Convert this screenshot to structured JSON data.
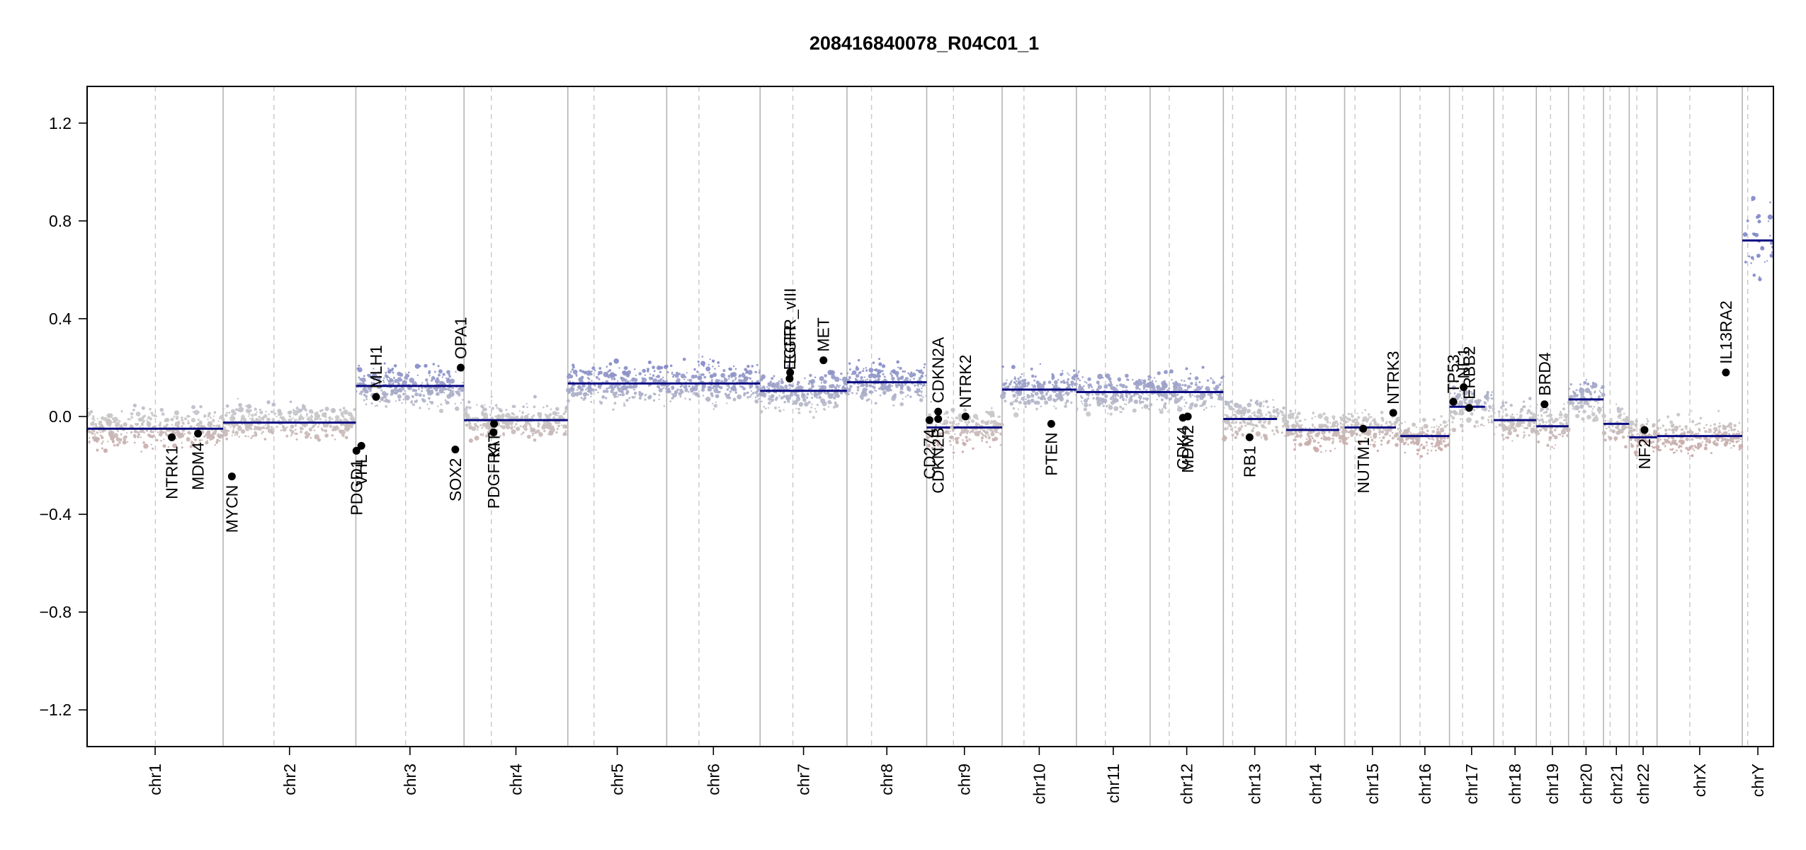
{
  "chart_data": {
    "type": "scatter",
    "title": "208416840078_R04C01_1",
    "xlabel": "",
    "ylabel": "",
    "ylim": [
      -1.35,
      1.35
    ],
    "yticks": [
      -1.2,
      -0.8,
      -0.4,
      0.0,
      0.4,
      0.8,
      1.2
    ],
    "ytick_labels": [
      "−1.2",
      "−0.8",
      "−0.4",
      "0.0",
      "0.4",
      "0.8",
      "1.2"
    ],
    "grid": false,
    "colors": {
      "gain": "#7f86c8",
      "neutral": "#c8c8c8",
      "loss": "#c99a98",
      "segment": "#0a0a82",
      "gene_point": "#000000",
      "chrom_border": "#b4b4b4",
      "centromere": "#c8c8c8"
    },
    "chromosomes": [
      {
        "name": "chr1",
        "start": 0,
        "end": 249,
        "centromere": 125
      },
      {
        "name": "chr2",
        "start": 249,
        "end": 492,
        "centromere": 93
      },
      {
        "name": "chr3",
        "start": 492,
        "end": 690,
        "centromere": 91
      },
      {
        "name": "chr4",
        "start": 690,
        "end": 880,
        "centromere": 50
      },
      {
        "name": "chr5",
        "start": 880,
        "end": 1061,
        "centromere": 48
      },
      {
        "name": "chr6",
        "start": 1061,
        "end": 1232,
        "centromere": 59
      },
      {
        "name": "chr7",
        "start": 1232,
        "end": 1391,
        "centromere": 60
      },
      {
        "name": "chr8",
        "start": 1391,
        "end": 1537,
        "centromere": 45
      },
      {
        "name": "chr9",
        "start": 1537,
        "end": 1675,
        "centromere": 49
      },
      {
        "name": "chr10",
        "start": 1675,
        "end": 1811,
        "centromere": 40
      },
      {
        "name": "chr11",
        "start": 1811,
        "end": 1946,
        "centromere": 53
      },
      {
        "name": "chr12",
        "start": 1946,
        "end": 2080,
        "centromere": 35
      },
      {
        "name": "chr13",
        "start": 2080,
        "end": 2195,
        "centromere": 17
      },
      {
        "name": "chr14",
        "start": 2195,
        "end": 2302,
        "centromere": 17
      },
      {
        "name": "chr15",
        "start": 2302,
        "end": 2404,
        "centromere": 19
      },
      {
        "name": "chr16",
        "start": 2404,
        "end": 2494,
        "centromere": 36
      },
      {
        "name": "chr17",
        "start": 2494,
        "end": 2575,
        "centromere": 24
      },
      {
        "name": "chr18",
        "start": 2575,
        "end": 2653,
        "centromere": 17
      },
      {
        "name": "chr19",
        "start": 2653,
        "end": 2712,
        "centromere": 26
      },
      {
        "name": "chr20",
        "start": 2712,
        "end": 2776,
        "centromere": 28
      },
      {
        "name": "chr21",
        "start": 2776,
        "end": 2823,
        "centromere": 12
      },
      {
        "name": "chr22",
        "start": 2823,
        "end": 2874,
        "centromere": 14
      },
      {
        "name": "chrX",
        "start": 2874,
        "end": 3030,
        "centromere": 60
      },
      {
        "name": "chrY",
        "start": 3030,
        "end": 3087,
        "centromere": 10
      }
    ],
    "segments": [
      {
        "chrom": "chr1",
        "x0": 0,
        "x1": 249,
        "y": -0.05
      },
      {
        "chrom": "chr2",
        "x0": 249,
        "x1": 492,
        "y": -0.025
      },
      {
        "chrom": "chr3",
        "x0": 492,
        "x1": 690,
        "y": 0.125
      },
      {
        "chrom": "chr4",
        "x0": 690,
        "x1": 880,
        "y": -0.015
      },
      {
        "chrom": "chr5-6",
        "x0": 880,
        "x1": 1232,
        "y": 0.135
      },
      {
        "chrom": "chr7",
        "x0": 1232,
        "x1": 1391,
        "y": 0.105
      },
      {
        "chrom": "chr8",
        "x0": 1391,
        "x1": 1537,
        "y": 0.14
      },
      {
        "chrom": "chr9p",
        "x0": 1537,
        "x1": 1580,
        "y": -0.045
      },
      {
        "chrom": "chr9q",
        "x0": 1586,
        "x1": 1675,
        "y": -0.045
      },
      {
        "chrom": "chr10",
        "x0": 1675,
        "x1": 1811,
        "y": 0.11
      },
      {
        "chrom": "chr11",
        "x0": 1811,
        "x1": 1946,
        "y": 0.1
      },
      {
        "chrom": "chr12",
        "x0": 1946,
        "x1": 2080,
        "y": 0.1
      },
      {
        "chrom": "chr13",
        "x0": 2080,
        "x1": 2178,
        "y": -0.01
      },
      {
        "chrom": "chr14",
        "x0": 2195,
        "x1": 2292,
        "y": -0.055
      },
      {
        "chrom": "chr15",
        "x0": 2302,
        "x1": 2396,
        "y": -0.045
      },
      {
        "chrom": "chr16",
        "x0": 2404,
        "x1": 2494,
        "y": -0.08
      },
      {
        "chrom": "chr17",
        "x0": 2494,
        "x1": 2559,
        "y": 0.04
      },
      {
        "chrom": "chr18",
        "x0": 2575,
        "x1": 2653,
        "y": -0.015
      },
      {
        "chrom": "chr19",
        "x0": 2653,
        "x1": 2712,
        "y": -0.04
      },
      {
        "chrom": "chr20",
        "x0": 2712,
        "x1": 2776,
        "y": 0.07
      },
      {
        "chrom": "chr21",
        "x0": 2776,
        "x1": 2823,
        "y": -0.03
      },
      {
        "chrom": "chr22",
        "x0": 2823,
        "x1": 2874,
        "y": -0.085
      },
      {
        "chrom": "chrX",
        "x0": 2874,
        "x1": 3030,
        "y": -0.08
      },
      {
        "chrom": "chrY",
        "x0": 3030,
        "x1": 3087,
        "y": 0.72
      }
    ],
    "probe_density": [
      {
        "chrom": "chr1",
        "mean": -0.05,
        "spread": 0.09
      },
      {
        "chrom": "chr2",
        "mean": -0.025,
        "spread": 0.085
      },
      {
        "chrom": "chr3",
        "mean": 0.125,
        "spread": 0.1
      },
      {
        "chrom": "chr4",
        "mean": -0.015,
        "spread": 0.085
      },
      {
        "chrom": "chr5",
        "mean": 0.135,
        "spread": 0.1
      },
      {
        "chrom": "chr6",
        "mean": 0.135,
        "spread": 0.1
      },
      {
        "chrom": "chr7",
        "mean": 0.105,
        "spread": 0.1
      },
      {
        "chrom": "chr8",
        "mean": 0.14,
        "spread": 0.1
      },
      {
        "chrom": "chr9",
        "mean": -0.045,
        "spread": 0.09
      },
      {
        "chrom": "chr10",
        "mean": 0.11,
        "spread": 0.1
      },
      {
        "chrom": "chr11",
        "mean": 0.1,
        "spread": 0.1
      },
      {
        "chrom": "chr12",
        "mean": 0.1,
        "spread": 0.1
      },
      {
        "chrom": "chr13",
        "mean": -0.01,
        "spread": 0.09
      },
      {
        "chrom": "chr14",
        "mean": -0.055,
        "spread": 0.09
      },
      {
        "chrom": "chr15",
        "mean": -0.045,
        "spread": 0.09
      },
      {
        "chrom": "chr16",
        "mean": -0.08,
        "spread": 0.09
      },
      {
        "chrom": "chr17",
        "mean": 0.04,
        "spread": 0.1
      },
      {
        "chrom": "chr18",
        "mean": -0.015,
        "spread": 0.09
      },
      {
        "chrom": "chr19",
        "mean": -0.04,
        "spread": 0.09
      },
      {
        "chrom": "chr20",
        "mean": 0.07,
        "spread": 0.1
      },
      {
        "chrom": "chr21",
        "mean": -0.03,
        "spread": 0.09
      },
      {
        "chrom": "chr22",
        "mean": -0.085,
        "spread": 0.09
      },
      {
        "chrom": "chrX",
        "mean": -0.08,
        "spread": 0.09
      },
      {
        "chrom": "chrY",
        "mean": 0.72,
        "spread": 0.18
      }
    ],
    "genes": [
      {
        "name": "NTRK1",
        "x": 155,
        "y": -0.085,
        "label_side": "below"
      },
      {
        "name": "MDM4",
        "x": 203,
        "y": -0.07,
        "label_side": "below"
      },
      {
        "name": "MYCN",
        "x": 265,
        "y": -0.245,
        "label_side": "below"
      },
      {
        "name": "PDGD1",
        "x": 493,
        "y": -0.14,
        "label_side": "below"
      },
      {
        "name": "VHL",
        "x": 502,
        "y": -0.12,
        "label_side": "below"
      },
      {
        "name": "MLH1",
        "x": 529,
        "y": 0.08,
        "label_side": "above"
      },
      {
        "name": "SOX2",
        "x": 674,
        "y": -0.135,
        "label_side": "below"
      },
      {
        "name": "OPA1",
        "x": 684,
        "y": 0.2,
        "label_side": "above"
      },
      {
        "name": "KIT",
        "x": 745,
        "y": -0.03,
        "label_side": "below"
      },
      {
        "name": "PDGFRA",
        "x": 744,
        "y": -0.065,
        "label_side": "below"
      },
      {
        "name": "EGFR",
        "x": 1286,
        "y": 0.155,
        "label_side": "above"
      },
      {
        "name": "EGFR_vIII",
        "x": 1287,
        "y": 0.18,
        "label_side": "above"
      },
      {
        "name": "MET",
        "x": 1348,
        "y": 0.23,
        "label_side": "above"
      },
      {
        "name": "CD274",
        "x": 1542,
        "y": -0.015,
        "label_side": "below"
      },
      {
        "name": "CDKN2B",
        "x": 1558,
        "y": -0.01,
        "label_side": "below"
      },
      {
        "name": "CDKN2A",
        "x": 1558,
        "y": 0.02,
        "label_side": "above"
      },
      {
        "name": "NTRK2",
        "x": 1608,
        "y": 0.0,
        "label_side": "above"
      },
      {
        "name": "PTEN",
        "x": 1765,
        "y": -0.03,
        "label_side": "below"
      },
      {
        "name": "CDK4",
        "x": 2006,
        "y": -0.005,
        "label_side": "below"
      },
      {
        "name": "MDM2",
        "x": 2015,
        "y": 0.0,
        "label_side": "below"
      },
      {
        "name": "RB1",
        "x": 2128,
        "y": -0.085,
        "label_side": "below"
      },
      {
        "name": "NUTM1",
        "x": 2336,
        "y": -0.05,
        "label_side": "below"
      },
      {
        "name": "NTRK3",
        "x": 2391,
        "y": 0.015,
        "label_side": "above"
      },
      {
        "name": "TP53",
        "x": 2501,
        "y": 0.06,
        "label_side": "above"
      },
      {
        "name": "ERBB2",
        "x": 2530,
        "y": 0.035,
        "label_side": "above"
      },
      {
        "name": "NF1",
        "x": 2520,
        "y": 0.12,
        "label_side": "above"
      },
      {
        "name": "BRD4",
        "x": 2668,
        "y": 0.05,
        "label_side": "above"
      },
      {
        "name": "NF2",
        "x": 2851,
        "y": -0.055,
        "label_side": "below"
      },
      {
        "name": "IL13RA2",
        "x": 3000,
        "y": 0.18,
        "label_side": "above"
      }
    ]
  }
}
